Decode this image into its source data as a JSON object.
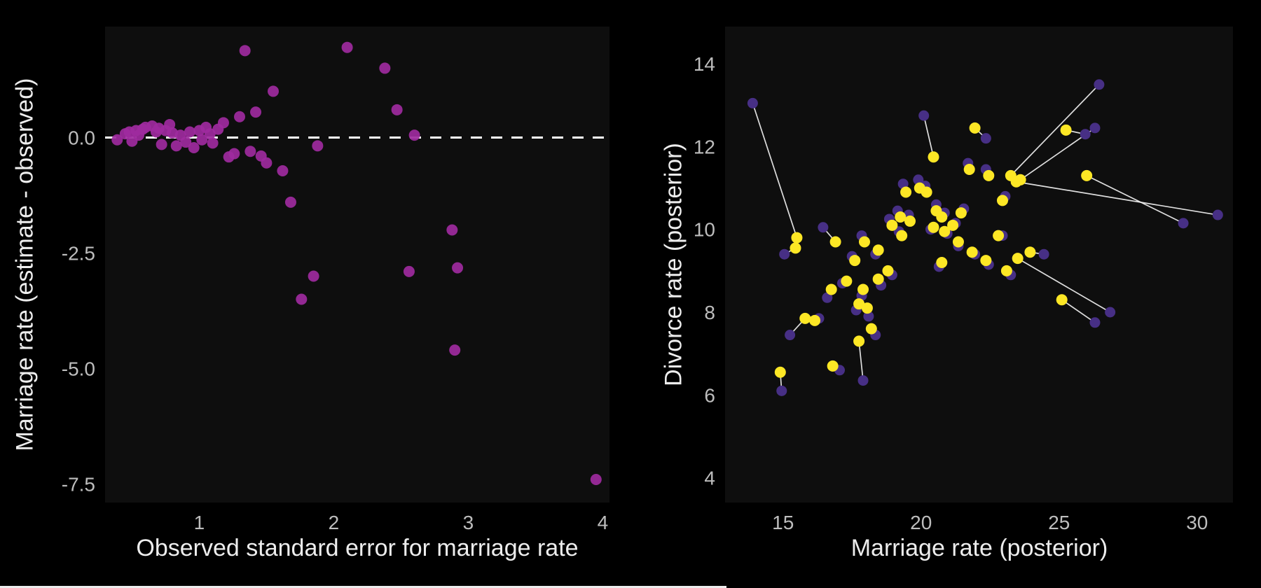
{
  "figure": {
    "background": "#000000",
    "panel_color": "#0e0e0e",
    "tick_color": "#bdbdbd",
    "title_color": "#ededed",
    "bottom_strip_color": "#ededed",
    "bottom_strip_width": 1037
  },
  "chart_data": [
    {
      "type": "scatter",
      "title": "",
      "xlabel": "Observed standard error for marriage rate",
      "ylabel": "Marriage rate (estimate - observed)",
      "xlim": [
        0.3,
        4.05
      ],
      "ylim": [
        -7.9,
        2.4
      ],
      "xticks": [
        1,
        2,
        3,
        4
      ],
      "xtick_labels": [
        "1",
        "2",
        "3",
        "4"
      ],
      "yticks": [
        0,
        -2.5,
        -5,
        -7.5
      ],
      "ytick_labels": [
        "0.0",
        "-2.5",
        "-5.0",
        "-7.5"
      ],
      "grid": false,
      "legend": false,
      "reference_line": {
        "y": 0,
        "color": "#ffffff",
        "dashed": true
      },
      "points": {
        "name": "estimate-minus-observed",
        "color": "#9e2a9e",
        "opacity": 0.92,
        "radius": 8,
        "values": [
          [
            0.39,
            -0.05
          ],
          [
            0.45,
            0.08
          ],
          [
            0.48,
            0.12
          ],
          [
            0.5,
            -0.08
          ],
          [
            0.53,
            0.15
          ],
          [
            0.55,
            0.05
          ],
          [
            0.58,
            0.18
          ],
          [
            0.6,
            0.22
          ],
          [
            0.65,
            0.25
          ],
          [
            0.68,
            0.12
          ],
          [
            0.7,
            0.2
          ],
          [
            0.72,
            -0.15
          ],
          [
            0.75,
            0.15
          ],
          [
            0.78,
            0.28
          ],
          [
            0.8,
            0.1
          ],
          [
            0.83,
            -0.18
          ],
          [
            0.86,
            0.05
          ],
          [
            0.9,
            -0.1
          ],
          [
            0.93,
            0.12
          ],
          [
            0.96,
            -0.22
          ],
          [
            1.0,
            0.15
          ],
          [
            1.02,
            -0.05
          ],
          [
            1.05,
            0.22
          ],
          [
            1.08,
            0.08
          ],
          [
            1.1,
            -0.12
          ],
          [
            1.14,
            0.18
          ],
          [
            1.18,
            0.32
          ],
          [
            1.22,
            -0.42
          ],
          [
            1.26,
            -0.35
          ],
          [
            1.3,
            0.45
          ],
          [
            1.34,
            1.88
          ],
          [
            1.38,
            -0.3
          ],
          [
            1.42,
            0.55
          ],
          [
            1.46,
            -0.4
          ],
          [
            1.5,
            -0.55
          ],
          [
            1.55,
            1.0
          ],
          [
            1.62,
            -0.72
          ],
          [
            1.68,
            -1.4
          ],
          [
            1.76,
            -3.5
          ],
          [
            1.85,
            -3.0
          ],
          [
            1.88,
            -0.18
          ],
          [
            2.1,
            1.95
          ],
          [
            2.38,
            1.5
          ],
          [
            2.47,
            0.6
          ],
          [
            2.56,
            -2.9
          ],
          [
            2.6,
            0.05
          ],
          [
            2.88,
            -2.0
          ],
          [
            2.9,
            -4.6
          ],
          [
            2.92,
            -2.82
          ],
          [
            3.95,
            -7.4
          ]
        ]
      }
    },
    {
      "type": "scatter",
      "paired": true,
      "title": "",
      "xlabel": "Marriage rate (posterior)",
      "ylabel": "Divorce rate (posterior)",
      "xlim": [
        12.9,
        31.3
      ],
      "ylim": [
        3.4,
        14.9
      ],
      "xticks": [
        15,
        20,
        25,
        30
      ],
      "xtick_labels": [
        "15",
        "20",
        "25",
        "30"
      ],
      "yticks": [
        4,
        6,
        8,
        10,
        12,
        14
      ],
      "ytick_labels": [
        "4",
        "6",
        "8",
        "10",
        "12",
        "14"
      ],
      "grid": false,
      "legend": false,
      "connect_pairs": true,
      "connector_color": "#f5f5f5",
      "series": [
        {
          "name": "observed",
          "color": "#472f85",
          "radius": 7.5,
          "points": [
            [
              13.9,
              13.05
            ],
            [
              15.05,
              9.4
            ],
            [
              16.45,
              10.05
            ],
            [
              15.25,
              7.45
            ],
            [
              16.3,
              7.85
            ],
            [
              14.95,
              6.1
            ],
            [
              17.05,
              6.6
            ],
            [
              17.9,
              6.35
            ],
            [
              16.6,
              8.35
            ],
            [
              17.15,
              8.7
            ],
            [
              17.5,
              9.35
            ],
            [
              17.85,
              8.4
            ],
            [
              18.1,
              7.9
            ],
            [
              18.35,
              7.45
            ],
            [
              17.65,
              8.05
            ],
            [
              18.55,
              8.65
            ],
            [
              18.95,
              8.9
            ],
            [
              18.35,
              9.4
            ],
            [
              17.85,
              9.85
            ],
            [
              18.85,
              10.25
            ],
            [
              19.2,
              9.95
            ],
            [
              19.35,
              11.1
            ],
            [
              19.9,
              11.2
            ],
            [
              20.15,
              11.05
            ],
            [
              19.15,
              10.45
            ],
            [
              19.55,
              10.35
            ],
            [
              20.1,
              12.75
            ],
            [
              20.55,
              10.6
            ],
            [
              20.85,
              10.4
            ],
            [
              20.35,
              10.0
            ],
            [
              20.95,
              9.9
            ],
            [
              21.25,
              10.15
            ],
            [
              21.55,
              10.5
            ],
            [
              21.35,
              9.6
            ],
            [
              20.65,
              9.1
            ],
            [
              21.95,
              9.4
            ],
            [
              22.45,
              9.15
            ],
            [
              22.95,
              9.85
            ],
            [
              23.25,
              8.9
            ],
            [
              24.45,
              9.4
            ],
            [
              23.05,
              10.8
            ],
            [
              22.35,
              11.45
            ],
            [
              22.35,
              12.2
            ],
            [
              21.7,
              11.6
            ],
            [
              26.45,
              13.5
            ],
            [
              26.3,
              12.45
            ],
            [
              25.95,
              12.3
            ],
            [
              29.5,
              10.15
            ],
            [
              30.75,
              10.35
            ],
            [
              26.85,
              8.0
            ],
            [
              26.3,
              7.75
            ]
          ]
        },
        {
          "name": "posterior",
          "color": "#fde725",
          "radius": 8,
          "points": [
            [
              15.5,
              9.8
            ],
            [
              15.45,
              9.55
            ],
            [
              16.9,
              9.7
            ],
            [
              15.8,
              7.85
            ],
            [
              16.15,
              7.8
            ],
            [
              14.9,
              6.55
            ],
            [
              16.8,
              6.7
            ],
            [
              17.75,
              7.3
            ],
            [
              16.75,
              8.55
            ],
            [
              17.3,
              8.75
            ],
            [
              17.6,
              9.25
            ],
            [
              17.9,
              8.55
            ],
            [
              18.05,
              8.1
            ],
            [
              18.2,
              7.6
            ],
            [
              17.75,
              8.2
            ],
            [
              18.45,
              8.8
            ],
            [
              18.8,
              9.0
            ],
            [
              18.45,
              9.5
            ],
            [
              17.95,
              9.7
            ],
            [
              18.95,
              10.1
            ],
            [
              19.3,
              9.85
            ],
            [
              19.45,
              10.9
            ],
            [
              19.95,
              11.0
            ],
            [
              20.2,
              10.9
            ],
            [
              19.25,
              10.3
            ],
            [
              19.6,
              10.2
            ],
            [
              20.45,
              11.75
            ],
            [
              20.55,
              10.45
            ],
            [
              20.75,
              10.3
            ],
            [
              20.45,
              10.05
            ],
            [
              20.85,
              9.95
            ],
            [
              21.15,
              10.1
            ],
            [
              21.45,
              10.4
            ],
            [
              21.35,
              9.7
            ],
            [
              20.75,
              9.2
            ],
            [
              21.85,
              9.45
            ],
            [
              22.35,
              9.25
            ],
            [
              22.8,
              9.85
            ],
            [
              23.1,
              9.0
            ],
            [
              23.95,
              9.45
            ],
            [
              22.95,
              10.7
            ],
            [
              22.45,
              11.3
            ],
            [
              21.95,
              12.45
            ],
            [
              21.75,
              11.45
            ],
            [
              23.25,
              11.3
            ],
            [
              23.6,
              11.2
            ],
            [
              25.25,
              12.4
            ],
            [
              26.0,
              11.3
            ],
            [
              23.45,
              11.15
            ],
            [
              23.5,
              9.3
            ],
            [
              25.1,
              8.3
            ]
          ]
        }
      ]
    }
  ]
}
